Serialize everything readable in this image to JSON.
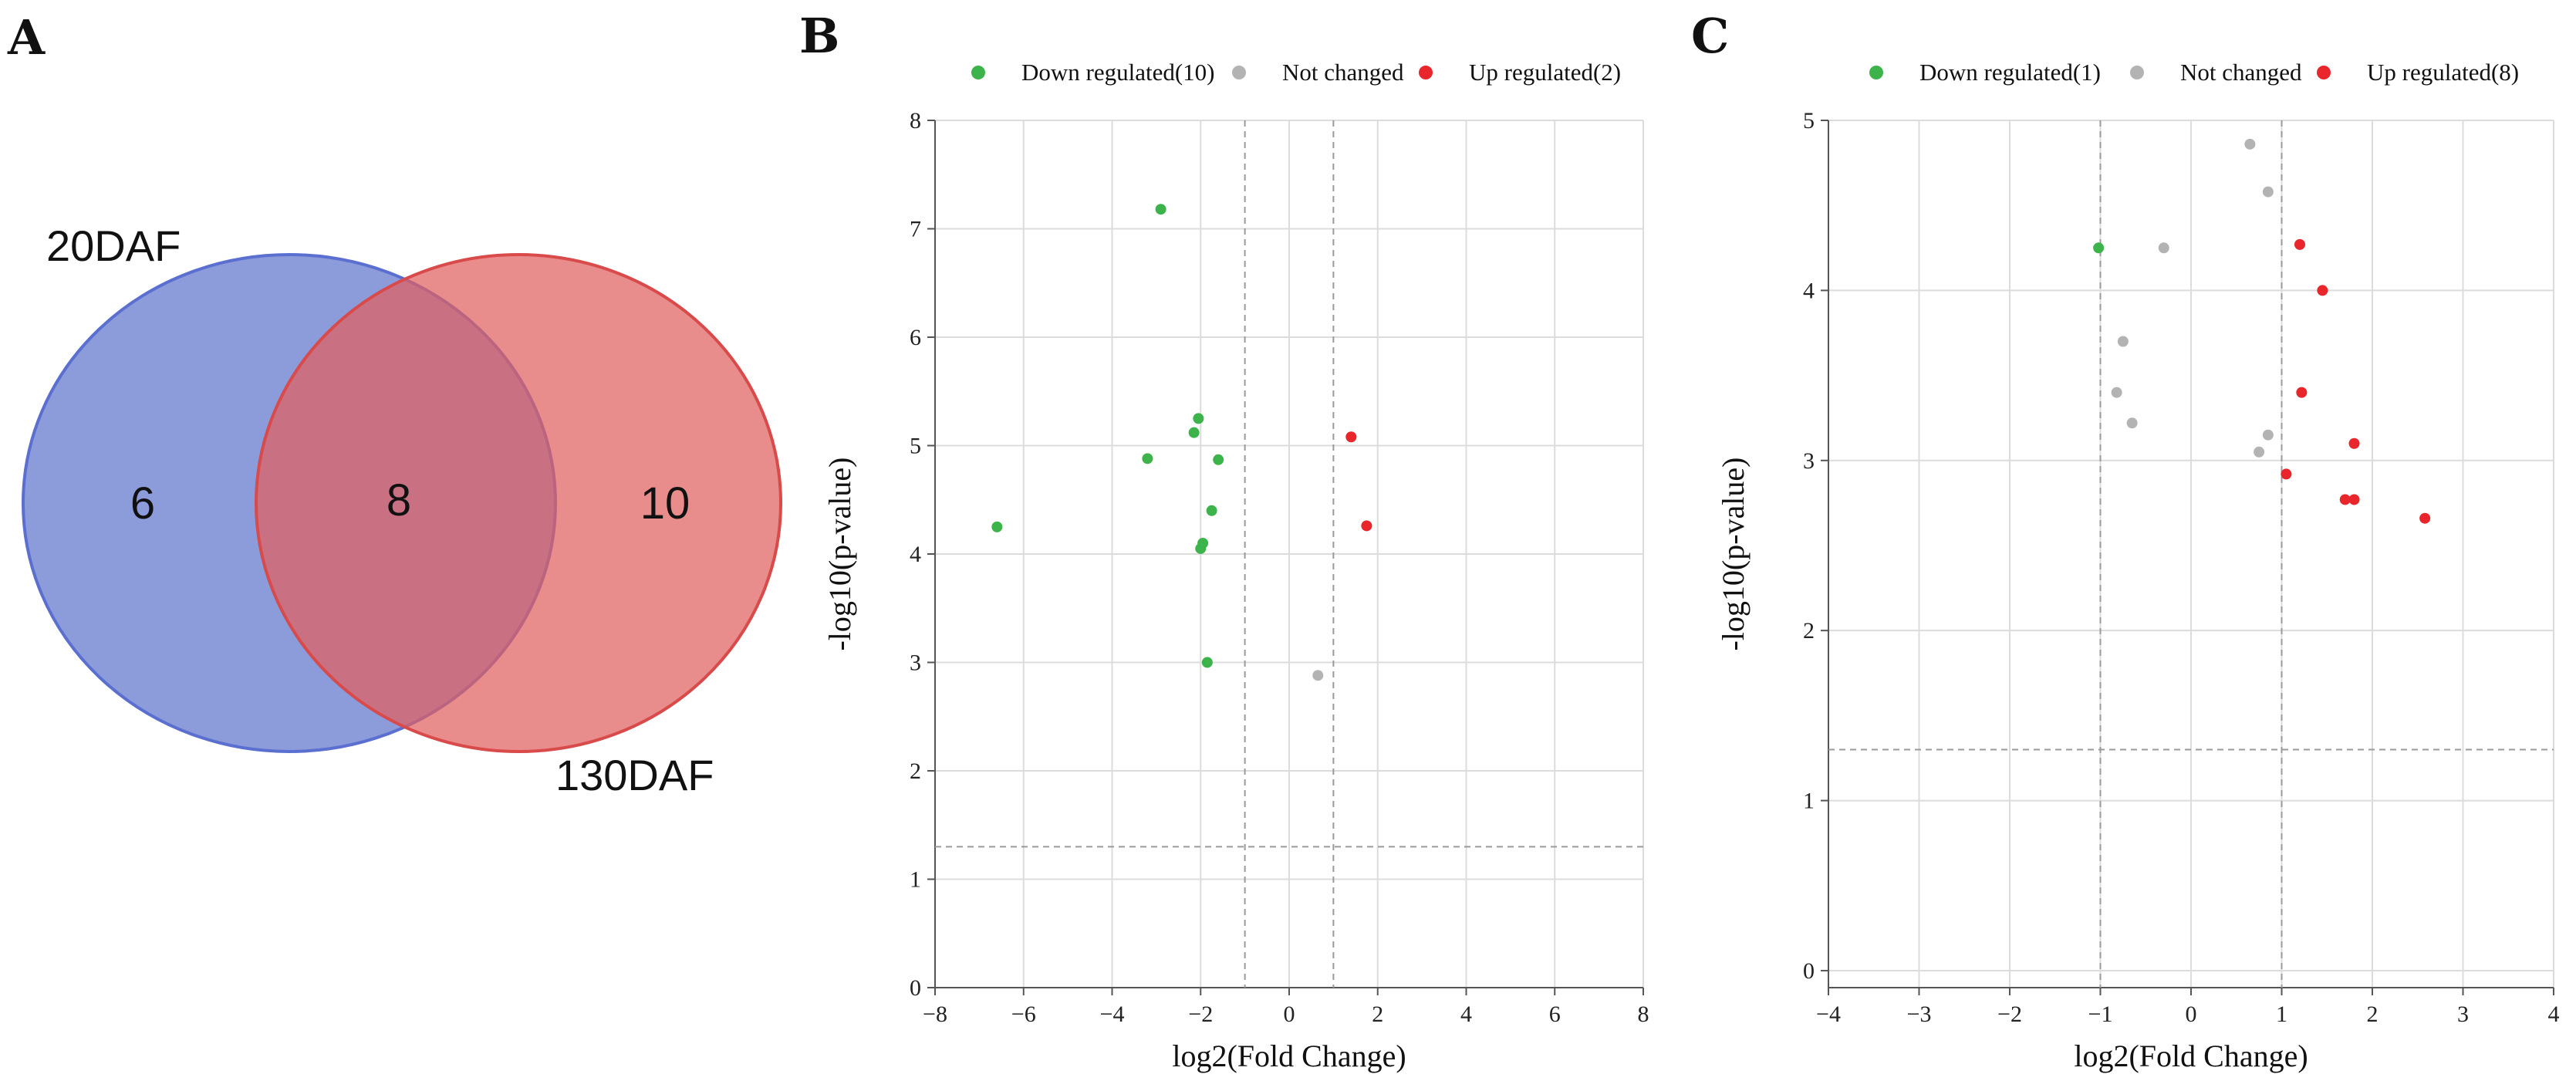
{
  "colors": {
    "down": "#3cb44b",
    "not_changed": "#b3b3b3",
    "up": "#e8262c",
    "venn_left": "#6b7fd0",
    "venn_right": "#e06060",
    "grid": "#dcdcdc"
  },
  "panels": {
    "A": "A",
    "B": "B",
    "C": "C"
  },
  "venn": {
    "left_label": "20DAF",
    "right_label": "130DAF",
    "left_only": "6",
    "overlap": "8",
    "right_only": "10"
  },
  "chart_data": [
    {
      "type": "scatter",
      "panel": "B",
      "xlabel": "log2(Fold Change)",
      "ylabel": "-log10(p-value)",
      "xlim": [
        -8,
        8
      ],
      "ylim": [
        0,
        8
      ],
      "xticks": [
        "−8",
        "−6",
        "−4",
        "−2",
        "0",
        "2",
        "4",
        "6",
        "8"
      ],
      "yticks": [
        "0",
        "1",
        "2",
        "3",
        "4",
        "5",
        "6",
        "7",
        "8"
      ],
      "xtick_values": [
        -8,
        -6,
        -4,
        -2,
        0,
        2,
        4,
        6,
        8
      ],
      "ytick_values": [
        0,
        1,
        2,
        3,
        4,
        5,
        6,
        7,
        8
      ],
      "grid": true,
      "legend_position": "top",
      "thresholds": {
        "fc": [
          -1,
          1
        ],
        "p": 1.3
      },
      "series": [
        {
          "name": "Down regulated(10)",
          "color_key": "down",
          "points": [
            [
              -6.6,
              4.25
            ],
            [
              -3.2,
              4.88
            ],
            [
              -2.9,
              7.18
            ],
            [
              -2.15,
              5.12
            ],
            [
              -2.05,
              5.25
            ],
            [
              -2.0,
              4.05
            ],
            [
              -1.95,
              4.1
            ],
            [
              -1.85,
              3.0
            ],
            [
              -1.75,
              4.4
            ],
            [
              -1.6,
              4.87
            ]
          ]
        },
        {
          "name": "Not changed",
          "color_key": "not_changed",
          "points": [
            [
              0.65,
              2.88
            ]
          ]
        },
        {
          "name": "Up regulated(2)",
          "color_key": "up",
          "points": [
            [
              1.4,
              5.08
            ],
            [
              1.75,
              4.26
            ]
          ]
        }
      ]
    },
    {
      "type": "scatter",
      "panel": "C",
      "xlabel": "log2(Fold Change)",
      "ylabel": "-log10(p-value)",
      "xlim": [
        -4,
        4
      ],
      "ylim": [
        -0.1,
        5
      ],
      "xticks": [
        "−4",
        "−3",
        "−2",
        "−1",
        "0",
        "1",
        "2",
        "3",
        "4"
      ],
      "yticks": [
        "0",
        "1",
        "2",
        "3",
        "4",
        "5"
      ],
      "xtick_values": [
        -4,
        -3,
        -2,
        -1,
        0,
        1,
        2,
        3,
        4
      ],
      "ytick_values": [
        0,
        1,
        2,
        3,
        4,
        5
      ],
      "grid": true,
      "legend_position": "top",
      "thresholds": {
        "fc": [
          -1,
          1
        ],
        "p": 1.3
      },
      "series": [
        {
          "name": "Down regulated(1)",
          "color_key": "down",
          "points": [
            [
              -1.02,
              4.25
            ]
          ]
        },
        {
          "name": "Not changed",
          "color_key": "not_changed",
          "points": [
            [
              -0.3,
              4.25
            ],
            [
              -0.75,
              3.7
            ],
            [
              -0.82,
              3.4
            ],
            [
              -0.65,
              3.22
            ],
            [
              0.65,
              4.86
            ],
            [
              0.85,
              4.58
            ],
            [
              0.85,
              3.15
            ],
            [
              0.75,
              3.05
            ]
          ]
        },
        {
          "name": "Up regulated(8)",
          "color_key": "up",
          "points": [
            [
              1.2,
              4.27
            ],
            [
              1.45,
              4.0
            ],
            [
              1.22,
              3.4
            ],
            [
              1.8,
              3.1
            ],
            [
              1.05,
              2.92
            ],
            [
              1.7,
              2.77
            ],
            [
              1.8,
              2.77
            ],
            [
              2.58,
              2.66
            ]
          ]
        }
      ]
    }
  ]
}
